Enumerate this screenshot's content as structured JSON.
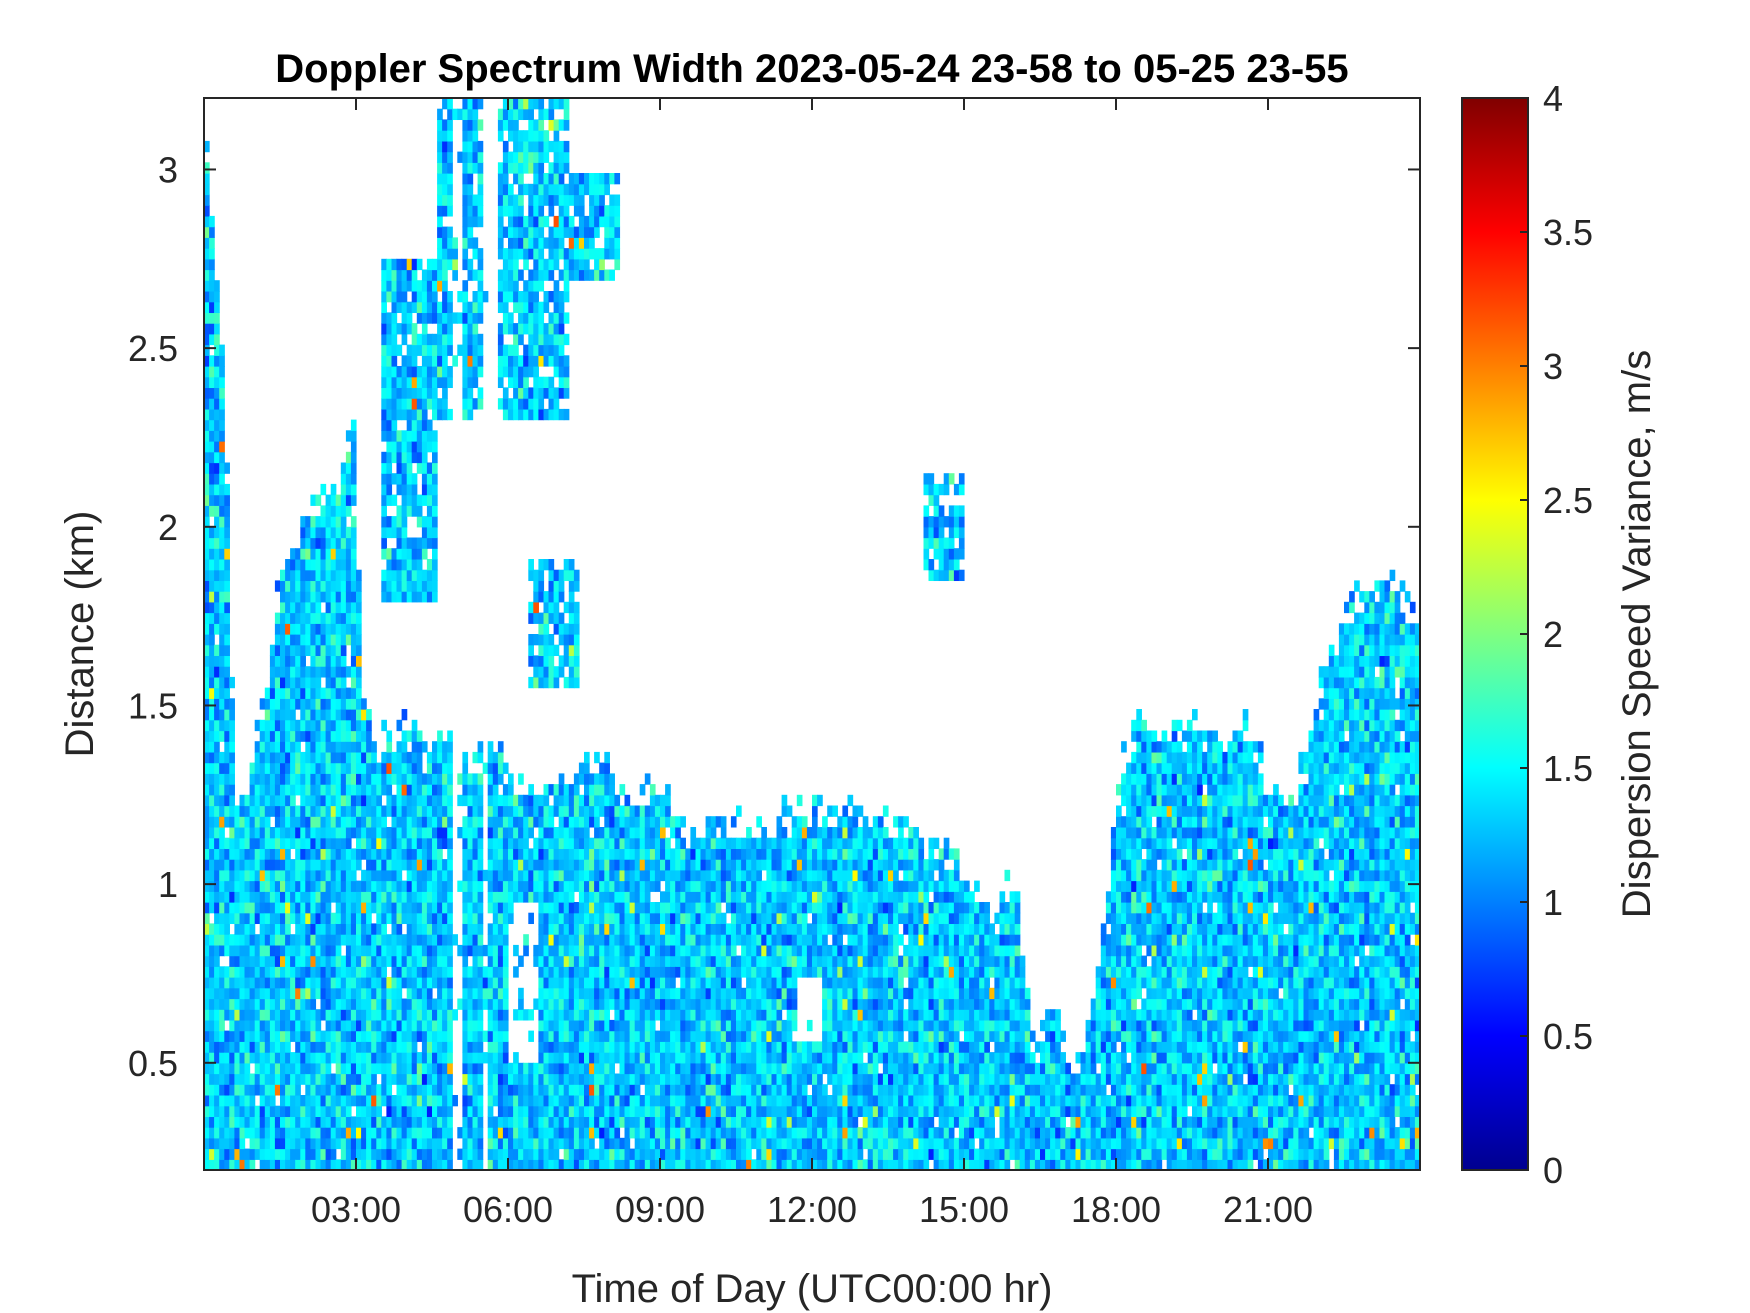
{
  "chart_data": {
    "type": "heatmap",
    "title": "Doppler Spectrum Width 2023-05-24 23-58 to 05-25 23-55",
    "xlabel": "Time of Day (UTC00:00 hr)",
    "ylabel": "Distance (km)",
    "colorbar_label": "Dispersion Speed Variance, m/s",
    "xlim": [
      0,
      24
    ],
    "ylim": [
      0.2,
      3.2
    ],
    "clim": [
      0,
      4
    ],
    "colormap": "jet",
    "background_color": "#ffffff",
    "x_ticks": [
      {
        "value": 3,
        "label": "03:00"
      },
      {
        "value": 6,
        "label": "06:00"
      },
      {
        "value": 9,
        "label": "09:00"
      },
      {
        "value": 12,
        "label": "12:00"
      },
      {
        "value": 15,
        "label": "15:00"
      },
      {
        "value": 18,
        "label": "18:00"
      },
      {
        "value": 21,
        "label": "21:00"
      }
    ],
    "y_ticks": [
      {
        "value": 0.5,
        "label": "0.5"
      },
      {
        "value": 1,
        "label": "1"
      },
      {
        "value": 1.5,
        "label": "1.5"
      },
      {
        "value": 2,
        "label": "2"
      },
      {
        "value": 2.5,
        "label": "2.5"
      },
      {
        "value": 3,
        "label": "3"
      }
    ],
    "colorbar_ticks": [
      {
        "value": 0,
        "label": "0"
      },
      {
        "value": 0.5,
        "label": "0.5"
      },
      {
        "value": 1,
        "label": "1"
      },
      {
        "value": 1.5,
        "label": "1.5"
      },
      {
        "value": 2,
        "label": "2"
      },
      {
        "value": 2.5,
        "label": "2.5"
      },
      {
        "value": 3,
        "label": "3"
      },
      {
        "value": 3.5,
        "label": "3.5"
      },
      {
        "value": 4,
        "label": "4"
      }
    ],
    "time_step_hr": 0.1,
    "height_step_km": 0.03,
    "typical_value": 1.3,
    "value_spread": 0.35,
    "coverage": {
      "t": [
        0,
        0.4,
        0.6,
        0.9,
        1.2,
        1.5,
        2.0,
        2.2,
        2.6,
        3.0,
        3.1,
        3.4,
        3.9,
        4.4,
        4.7,
        5.0,
        5.4,
        5.7,
        6.0,
        6.5,
        7.0,
        7.8,
        8.2,
        9.0,
        9.6,
        10.3,
        11.0,
        12.0,
        13.0,
        14.0,
        14.6,
        15.2,
        15.6,
        16.0,
        16.4,
        16.7,
        17.2,
        17.7,
        18.0,
        18.4,
        19.0,
        19.5,
        20.0,
        20.5,
        21.0,
        21.5,
        22.0,
        22.7,
        23.3,
        24.0
      ],
      "top_km": [
        3.2,
        2.5,
        1.3,
        1.35,
        1.6,
        1.9,
        2.1,
        2.1,
        2.15,
        2.35,
        1.55,
        1.45,
        1.5,
        1.45,
        1.5,
        1.45,
        1.4,
        1.5,
        1.35,
        1.35,
        1.33,
        1.4,
        1.33,
        1.3,
        1.2,
        1.23,
        1.22,
        1.27,
        1.25,
        1.2,
        1.15,
        1.05,
        0.95,
        1.1,
        0.55,
        0.75,
        0.5,
        0.85,
        1.3,
        1.55,
        1.45,
        1.5,
        1.45,
        1.5,
        1.35,
        1.3,
        1.6,
        1.85,
        1.9,
        1.8
      ]
    },
    "secondary_cloud_layers": [
      {
        "t0": 3.5,
        "t1": 4.6,
        "bottom_km": 1.8,
        "top_km": 2.75
      },
      {
        "t0": 4.6,
        "t1": 5.6,
        "bottom_km": 2.3,
        "top_km": 3.2
      },
      {
        "t0": 5.8,
        "t1": 7.2,
        "bottom_km": 2.3,
        "top_km": 3.2
      },
      {
        "t0": 7.2,
        "t1": 8.2,
        "bottom_km": 2.7,
        "top_km": 3.0
      },
      {
        "t0": 6.4,
        "t1": 7.4,
        "bottom_km": 1.55,
        "top_km": 1.9
      },
      {
        "t0": 14.2,
        "t1": 15.0,
        "bottom_km": 1.85,
        "top_km": 2.15
      }
    ],
    "gaps": [
      {
        "t0": 4.9,
        "t1": 5.05,
        "bottom_km": 0.2,
        "top_km": 3.2
      },
      {
        "t0": 5.45,
        "t1": 5.6,
        "bottom_km": 0.2,
        "top_km": 3.2
      },
      {
        "t0": 6.0,
        "t1": 6.6,
        "bottom_km": 0.5,
        "top_km": 0.95
      },
      {
        "t0": 11.7,
        "t1": 12.2,
        "bottom_km": 0.55,
        "top_km": 0.75
      }
    ]
  }
}
